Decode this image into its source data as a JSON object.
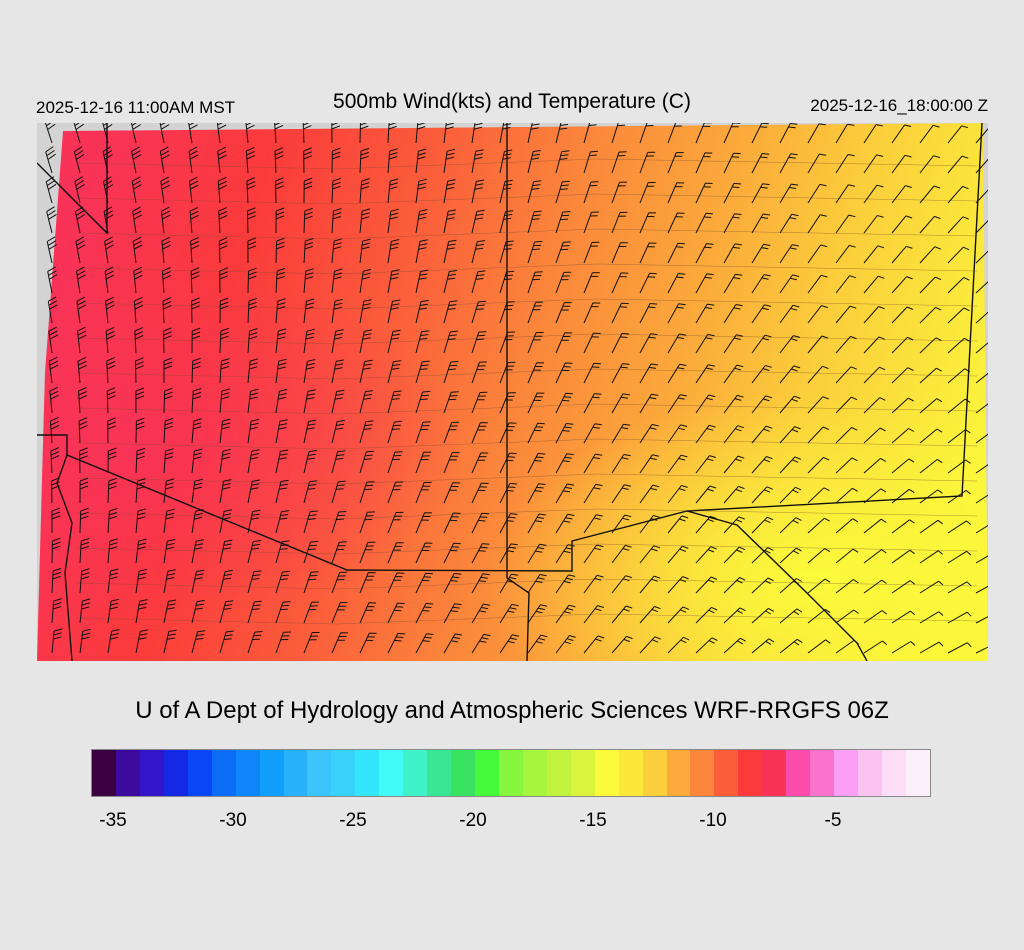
{
  "header": {
    "valid_local": "2025-12-16 11:00AM MST",
    "title": "500mb Wind(kts) and Temperature (C)",
    "valid_utc": "2025-12-16_18:00:00 Z"
  },
  "footer": {
    "credit": "U of A Dept of Hydrology and Atmospheric Sciences WRF-RRGFS 06Z"
  },
  "colorbar": {
    "colors": [
      "#3a003f",
      "#3c0a9c",
      "#3316c9",
      "#1429e3",
      "#0a46f5",
      "#0b6cf6",
      "#0e85f8",
      "#10a0fb",
      "#27b2fb",
      "#3cc4fb",
      "#3ad2fb",
      "#33e6fb",
      "#40fbf7",
      "#40f2c8",
      "#3ae694",
      "#3ae261",
      "#45fa3a",
      "#86f73e",
      "#a6f53e",
      "#c1f23e",
      "#dbf53e",
      "#fbfb3b",
      "#fbe83b",
      "#fbce3b",
      "#fba93b",
      "#fb853b",
      "#fb5d3b",
      "#fb3b3b",
      "#f93358",
      "#fb4cac",
      "#fb72cd",
      "#fb9ef5",
      "#fbc3f0",
      "#fbddf7",
      "#fdf0fb"
    ],
    "labels": [
      "-35",
      "-30",
      "-25",
      "-20",
      "-15",
      "-10",
      "-5"
    ],
    "label_values": [
      -35,
      -30,
      -25,
      -20,
      -15,
      -10,
      -5
    ],
    "min": -35.5,
    "step": 1
  },
  "map": {
    "field": "500mb temperature (C) with wind barbs (kts)",
    "temperature_colors": {
      "coldest_shown": "#f93358",
      "cold": "#fb5d3b",
      "mid": "#fb853b",
      "warm": "#fba93b",
      "warmer": "#fbce3b",
      "warmest_shown": "#fbfb3b"
    },
    "missing_color": "#d3d3d3"
  }
}
